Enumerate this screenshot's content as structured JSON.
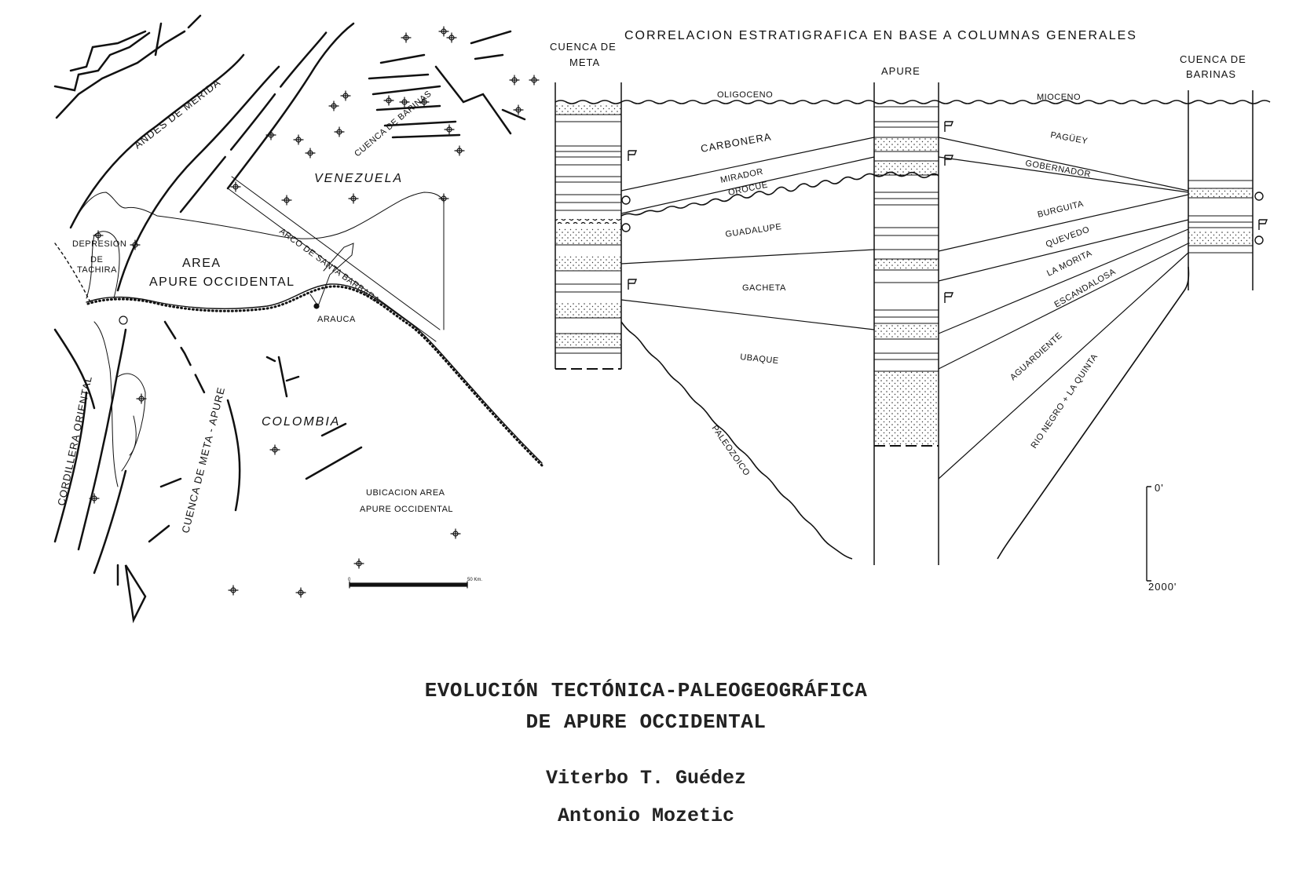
{
  "map": {
    "region_labels": {
      "andes": "ANDES DE MERIDA",
      "venezuela": "VENEZUELA",
      "colombia": "COLOMBIA",
      "cuenca_barinas": "CUENCA DE BARINAS",
      "depresion_1": "DEPRESION",
      "depresion_2": "DE",
      "depresion_3": "TACHIRA",
      "area_1": "AREA",
      "area_2": "APURE OCCIDENTAL",
      "arco": "ARCO DE SANTA BARBARA",
      "arauca": "ARAUCA",
      "cordillera": "CORDILLERA ORIENTAL",
      "meta_apure": "CUENCA DE META - APURE",
      "ubicacion_1": "UBICACION AREA",
      "ubicacion_2": "APURE OCCIDENTAL"
    },
    "scale_bar": {
      "start": "0",
      "end": "50 Km."
    }
  },
  "correlation": {
    "title": "CORRELACION ESTRATIGRAFICA EN BASE A COLUMNAS GENERALES",
    "columns": {
      "meta_1": "CUENCA DE",
      "meta_2": "META",
      "apure": "APURE",
      "barinas_1": "CUENCA DE",
      "barinas_2": "BARINAS"
    },
    "units": {
      "oligoceno": "OLIGOCENO",
      "mioceno": "MIOCENO",
      "carbonera": "CARBONERA",
      "mirador": "MIRADOR",
      "orocue": "OROCUE",
      "guadalupe": "GUADALUPE",
      "gacheta": "GACHETA",
      "ubaque": "UBAQUE",
      "paleozoico": "PALEOZOICO",
      "paguey": "PAGÜEY",
      "gobernador": "GOBERNADOR",
      "burguita": "BURGUITA",
      "quevedo": "QUEVEDO",
      "la_morita": "LA MORITA",
      "escandalosa": "ESCANDALOSA",
      "aguardiente": "AGUARDIENTE",
      "rio_negro": "RIO NEGRO + LA QUINTA"
    },
    "depth_scale": {
      "top": "0'",
      "bottom": "2000'"
    }
  },
  "caption": {
    "title_line1": "EVOLUCIÓN TECTÓNICA-PALEOGEOGRÁFICA",
    "title_line2": "DE APURE OCCIDENTAL",
    "author1": "Viterbo T. Guédez",
    "author2": "Antonio Mozetic"
  }
}
